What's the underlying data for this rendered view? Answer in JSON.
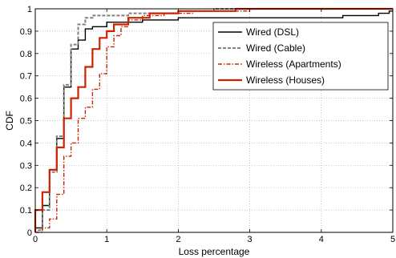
{
  "chart_data": {
    "type": "line",
    "subtype": "step-cdf",
    "title": "",
    "xlabel": "Loss percentage",
    "ylabel": "CDF",
    "xlim": [
      0,
      5
    ],
    "ylim": [
      0,
      1
    ],
    "xticks": [
      "0",
      "1",
      "2",
      "3",
      "4",
      "5"
    ],
    "yticks": [
      "0",
      "0.1",
      "0.2",
      "0.3",
      "0.4",
      "0.5",
      "0.6",
      "0.7",
      "0.8",
      "0.9",
      "1"
    ],
    "grid": true,
    "legend_position": "top-right",
    "series": [
      {
        "name": "Wired (DSL)",
        "color": "#000000",
        "style": "solid",
        "points": [
          [
            0,
            0
          ],
          [
            0,
            0.02
          ],
          [
            0.1,
            0.02
          ],
          [
            0.1,
            0.12
          ],
          [
            0.2,
            0.12
          ],
          [
            0.2,
            0.28
          ],
          [
            0.3,
            0.28
          ],
          [
            0.3,
            0.42
          ],
          [
            0.4,
            0.42
          ],
          [
            0.4,
            0.65
          ],
          [
            0.5,
            0.65
          ],
          [
            0.5,
            0.82
          ],
          [
            0.6,
            0.82
          ],
          [
            0.6,
            0.86
          ],
          [
            0.7,
            0.86
          ],
          [
            0.7,
            0.91
          ],
          [
            0.8,
            0.91
          ],
          [
            0.8,
            0.92
          ],
          [
            1.0,
            0.92
          ],
          [
            1.0,
            0.94
          ],
          [
            1.5,
            0.94
          ],
          [
            1.5,
            0.95
          ],
          [
            2.0,
            0.95
          ],
          [
            2.0,
            0.96
          ],
          [
            4.3,
            0.96
          ],
          [
            4.3,
            0.97
          ],
          [
            4.8,
            0.97
          ],
          [
            4.8,
            0.98
          ],
          [
            4.95,
            0.98
          ],
          [
            4.95,
            0.99
          ],
          [
            5,
            0.99
          ]
        ]
      },
      {
        "name": "Wired (Cable)",
        "color": "#808080",
        "style": "dashed",
        "points": [
          [
            0,
            0
          ],
          [
            0,
            0.01
          ],
          [
            0.1,
            0.01
          ],
          [
            0.1,
            0.1
          ],
          [
            0.2,
            0.1
          ],
          [
            0.2,
            0.27
          ],
          [
            0.3,
            0.27
          ],
          [
            0.3,
            0.43
          ],
          [
            0.4,
            0.43
          ],
          [
            0.4,
            0.66
          ],
          [
            0.5,
            0.66
          ],
          [
            0.5,
            0.84
          ],
          [
            0.6,
            0.84
          ],
          [
            0.6,
            0.93
          ],
          [
            0.7,
            0.93
          ],
          [
            0.7,
            0.96
          ],
          [
            0.8,
            0.96
          ],
          [
            0.8,
            0.97
          ],
          [
            1.3,
            0.97
          ],
          [
            1.3,
            0.98
          ],
          [
            2.0,
            0.98
          ],
          [
            2.0,
            0.99
          ],
          [
            2.5,
            0.99
          ],
          [
            2.5,
            1.0
          ],
          [
            5,
            1.0
          ]
        ]
      },
      {
        "name": "Wireless (Apartments)",
        "color": "#cc2200",
        "style": "dash-dot",
        "points": [
          [
            0,
            0
          ],
          [
            0.1,
            0
          ],
          [
            0.1,
            0.02
          ],
          [
            0.2,
            0.02
          ],
          [
            0.2,
            0.06
          ],
          [
            0.3,
            0.06
          ],
          [
            0.3,
            0.17
          ],
          [
            0.4,
            0.17
          ],
          [
            0.4,
            0.34
          ],
          [
            0.5,
            0.34
          ],
          [
            0.5,
            0.4
          ],
          [
            0.6,
            0.4
          ],
          [
            0.6,
            0.51
          ],
          [
            0.7,
            0.51
          ],
          [
            0.7,
            0.56
          ],
          [
            0.8,
            0.56
          ],
          [
            0.8,
            0.64
          ],
          [
            0.9,
            0.64
          ],
          [
            0.9,
            0.71
          ],
          [
            1.0,
            0.71
          ],
          [
            1.0,
            0.83
          ],
          [
            1.1,
            0.83
          ],
          [
            1.1,
            0.88
          ],
          [
            1.2,
            0.88
          ],
          [
            1.2,
            0.92
          ],
          [
            1.3,
            0.92
          ],
          [
            1.3,
            0.95
          ],
          [
            1.5,
            0.95
          ],
          [
            1.5,
            0.97
          ],
          [
            1.8,
            0.97
          ],
          [
            1.8,
            0.98
          ],
          [
            2.2,
            0.98
          ],
          [
            2.2,
            0.99
          ],
          [
            3.0,
            0.99
          ],
          [
            3.0,
            1.0
          ],
          [
            5,
            1.0
          ]
        ]
      },
      {
        "name": "Wireless (Houses)",
        "color": "#cc2200",
        "style": "solid-thick",
        "points": [
          [
            0,
            0
          ],
          [
            0,
            0.1
          ],
          [
            0.1,
            0.1
          ],
          [
            0.1,
            0.18
          ],
          [
            0.2,
            0.18
          ],
          [
            0.2,
            0.28
          ],
          [
            0.3,
            0.28
          ],
          [
            0.3,
            0.38
          ],
          [
            0.4,
            0.38
          ],
          [
            0.4,
            0.51
          ],
          [
            0.5,
            0.51
          ],
          [
            0.5,
            0.6
          ],
          [
            0.6,
            0.6
          ],
          [
            0.6,
            0.65
          ],
          [
            0.7,
            0.65
          ],
          [
            0.7,
            0.74
          ],
          [
            0.8,
            0.74
          ],
          [
            0.8,
            0.82
          ],
          [
            0.9,
            0.82
          ],
          [
            0.9,
            0.87
          ],
          [
            1.0,
            0.87
          ],
          [
            1.0,
            0.9
          ],
          [
            1.1,
            0.9
          ],
          [
            1.1,
            0.93
          ],
          [
            1.3,
            0.93
          ],
          [
            1.3,
            0.96
          ],
          [
            1.6,
            0.96
          ],
          [
            1.6,
            0.98
          ],
          [
            2.0,
            0.98
          ],
          [
            2.0,
            0.99
          ],
          [
            2.8,
            0.99
          ],
          [
            2.8,
            1.0
          ],
          [
            5,
            1.0
          ]
        ]
      }
    ]
  }
}
